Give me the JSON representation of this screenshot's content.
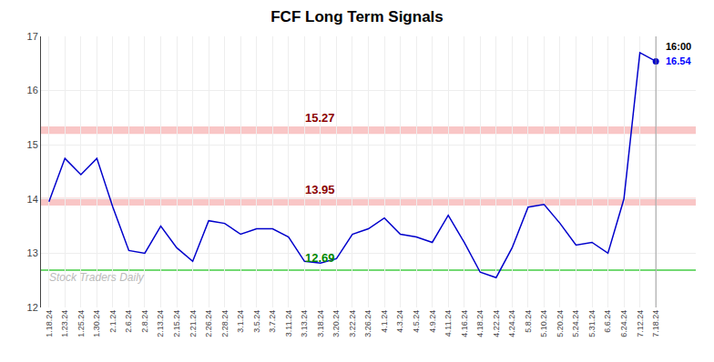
{
  "chart_data": {
    "type": "line",
    "title": "FCF Long Term Signals",
    "categories": [
      "1.18.24",
      "1.23.24",
      "1.25.24",
      "1.30.24",
      "2.1.24",
      "2.6.24",
      "2.8.24",
      "2.13.24",
      "2.15.24",
      "2.21.24",
      "2.26.24",
      "2.28.24",
      "3.1.24",
      "3.5.24",
      "3.7.24",
      "3.11.24",
      "3.13.24",
      "3.18.24",
      "3.20.24",
      "3.22.24",
      "3.26.24",
      "4.1.24",
      "4.3.24",
      "4.5.24",
      "4.9.24",
      "4.11.24",
      "4.16.24",
      "4.18.24",
      "4.22.24",
      "4.24.24",
      "5.8.24",
      "5.10.24",
      "5.20.24",
      "5.24.24",
      "5.31.24",
      "6.6.24",
      "6.24.24",
      "7.12.24",
      "7.18.24"
    ],
    "values": [
      13.95,
      14.75,
      14.45,
      14.75,
      13.85,
      13.05,
      13.0,
      13.5,
      13.1,
      12.85,
      13.6,
      13.55,
      13.35,
      13.45,
      13.45,
      13.3,
      12.85,
      12.82,
      12.9,
      13.35,
      13.45,
      13.65,
      13.35,
      13.3,
      13.2,
      13.7,
      13.2,
      12.65,
      12.55,
      13.1,
      13.85,
      13.9,
      13.55,
      13.15,
      13.2,
      13.0,
      14.0,
      16.7,
      16.54
    ],
    "color": "#0000cc",
    "ylim": [
      12,
      17
    ],
    "yticks": [
      12,
      13,
      14,
      15,
      16,
      17
    ],
    "grid": true,
    "reference_lines": [
      {
        "type": "band",
        "value": 15.27,
        "label": "15.27",
        "color": "#f5a0a0",
        "label_color": "#8b0000"
      },
      {
        "type": "band",
        "value": 13.95,
        "label": "13.95",
        "color": "#f5a0a0",
        "label_color": "#8b0000"
      },
      {
        "type": "line",
        "value": 12.69,
        "label": "12.69",
        "color": "#44cc44",
        "label_color": "#008800"
      }
    ],
    "annotations": [
      {
        "text": "16:00",
        "color": "#000000"
      },
      {
        "text": "16.54",
        "color": "#0000ff"
      }
    ],
    "watermark": {
      "text": "Stock Traders Daily",
      "color": "#bbbbbb"
    }
  }
}
